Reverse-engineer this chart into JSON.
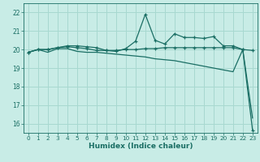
{
  "xlabel": "Humidex (Indice chaleur)",
  "xlim": [
    -0.5,
    23.5
  ],
  "ylim": [
    15.5,
    22.5
  ],
  "yticks": [
    16,
    17,
    18,
    19,
    20,
    21,
    22
  ],
  "xticks": [
    0,
    1,
    2,
    3,
    4,
    5,
    6,
    7,
    8,
    9,
    10,
    11,
    12,
    13,
    14,
    15,
    16,
    17,
    18,
    19,
    20,
    21,
    22,
    23
  ],
  "background_color": "#c8ece6",
  "grid_color": "#a8d8d0",
  "line_color": "#1a6e64",
  "line1_x": [
    0,
    1,
    2,
    3,
    4,
    5,
    6,
    7,
    8,
    9,
    10,
    11,
    12,
    13,
    14,
    15,
    16,
    17,
    18,
    19,
    20,
    21,
    22,
    23
  ],
  "line1_y": [
    19.85,
    20.0,
    20.0,
    20.1,
    20.15,
    20.1,
    20.05,
    19.95,
    19.95,
    19.95,
    20.0,
    20.0,
    20.05,
    20.05,
    20.1,
    20.1,
    20.1,
    20.1,
    20.1,
    20.1,
    20.1,
    20.1,
    20.0,
    19.95
  ],
  "line2_x": [
    0,
    1,
    2,
    3,
    4,
    5,
    6,
    7,
    8,
    9,
    10,
    11,
    12,
    13,
    14,
    15,
    16,
    17,
    18,
    19,
    20,
    21,
    22,
    23
  ],
  "line2_y": [
    19.85,
    20.0,
    20.0,
    20.1,
    20.2,
    20.2,
    20.15,
    20.1,
    19.95,
    19.9,
    20.05,
    20.45,
    21.9,
    20.5,
    20.3,
    20.85,
    20.65,
    20.65,
    20.6,
    20.7,
    20.2,
    20.2,
    20.0,
    15.65
  ],
  "line3_x": [
    0,
    1,
    2,
    3,
    4,
    5,
    6,
    7,
    8,
    9,
    10,
    11,
    12,
    13,
    14,
    15,
    16,
    17,
    18,
    19,
    20,
    21,
    22,
    23
  ],
  "line3_y": [
    19.85,
    20.0,
    19.85,
    20.05,
    20.05,
    19.9,
    19.85,
    19.85,
    19.8,
    19.75,
    19.7,
    19.65,
    19.6,
    19.5,
    19.45,
    19.4,
    19.3,
    19.2,
    19.1,
    19.0,
    18.9,
    18.8,
    20.0,
    16.3
  ]
}
